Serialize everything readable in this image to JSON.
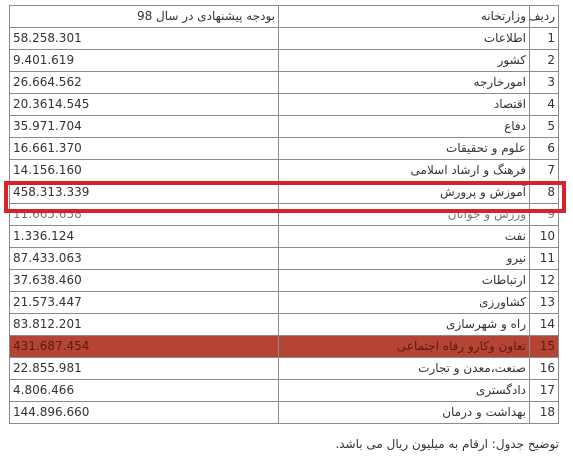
{
  "table": {
    "headers": {
      "row_number": "ردیف",
      "ministry": "وزارتخانه",
      "budget": "بودجه پیشنهادی در سال 98"
    },
    "rows": [
      {
        "num": "1",
        "ministry": "اطلاعات",
        "budget": "58.258.301"
      },
      {
        "num": "2",
        "ministry": "کشور",
        "budget": "9.401.619"
      },
      {
        "num": "3",
        "ministry": "امورخارجه",
        "budget": "26.664.562"
      },
      {
        "num": "4",
        "ministry": "اقتصاد",
        "budget": "20.3614.545"
      },
      {
        "num": "5",
        "ministry": "دفاع",
        "budget": "35.971.704"
      },
      {
        "num": "6",
        "ministry": "علوم و تحقیقات",
        "budget": "16.661.370"
      },
      {
        "num": "7",
        "ministry": "فرهنگ و ارشاد اسلامی",
        "budget": "14.156.160"
      },
      {
        "num": "8",
        "ministry": "آموزش و پرورش",
        "budget": "458.313.339"
      },
      {
        "num": "9",
        "ministry": "ورزش و جوانان",
        "budget": "11.665.658"
      },
      {
        "num": "10",
        "ministry": "نفت",
        "budget": "1.336.124"
      },
      {
        "num": "11",
        "ministry": "نیرو",
        "budget": "87.433.063"
      },
      {
        "num": "12",
        "ministry": "ارتباطات",
        "budget": "37.638.460"
      },
      {
        "num": "13",
        "ministry": "کشاورزی",
        "budget": "21.573.447"
      },
      {
        "num": "14",
        "ministry": "راه و شهرسازی",
        "budget": "83.812.201"
      },
      {
        "num": "15",
        "ministry": "تعاون وکارو رفاه اجتماعی",
        "budget": "431.687.454"
      },
      {
        "num": "16",
        "ministry": "صنعت،معدن و تجارت",
        "budget": "22.855.981"
      },
      {
        "num": "17",
        "ministry": "دادگستری",
        "budget": "4.806.466"
      },
      {
        "num": "18",
        "ministry": "بهداشت و درمان",
        "budget": "144.896.660"
      }
    ]
  },
  "highlights": {
    "framed_row": "8",
    "shaded_row": "15",
    "frame_color": "#d62229",
    "shade_color": "#b64434"
  },
  "caption": "توضیح جدول: ارقام به میلیون ریال می باشد."
}
